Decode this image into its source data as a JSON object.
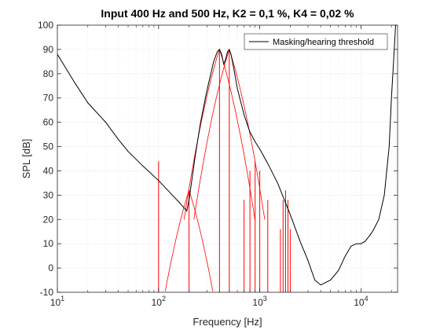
{
  "chart_data": {
    "type": "line",
    "title": "Input 400 Hz and 500 Hz, K2 = 0,1 %, K4 = 0,02 %",
    "xlabel": "Frequency [Hz]",
    "ylabel": "SPL [dB]",
    "xscale": "log",
    "xlim": [
      10,
      23000
    ],
    "ylim": [
      -10,
      100
    ],
    "grid": true,
    "minor_grid": true,
    "legend_position": "top-right",
    "x_ticks": [
      {
        "base": "10",
        "exp": "1",
        "value": 10
      },
      {
        "base": "10",
        "exp": "2",
        "value": 100
      },
      {
        "base": "10",
        "exp": "3",
        "value": 1000
      },
      {
        "base": "10",
        "exp": "4",
        "value": 10000
      }
    ],
    "y_ticks": [
      -10,
      0,
      10,
      20,
      30,
      40,
      50,
      60,
      70,
      80,
      90,
      100
    ],
    "series": [
      {
        "name": "Masking/hearing threshold",
        "color": "#000000",
        "x": [
          10,
          15,
          20,
          30,
          40,
          50,
          70,
          100,
          130,
          160,
          190,
          200,
          230,
          260,
          300,
          350,
          380,
          400,
          420,
          440,
          460,
          480,
          500,
          520,
          560,
          600,
          700,
          800,
          900,
          1000,
          1200,
          1500,
          2000,
          2500,
          3000,
          3500,
          4000,
          5000,
          6000,
          7000,
          8000,
          9000,
          10000,
          11000,
          12000,
          13000,
          15000,
          17000,
          19000,
          20000,
          21000,
          22000
        ],
        "y": [
          88,
          76,
          68,
          60,
          53,
          48,
          42,
          36,
          31,
          27,
          23.5,
          28,
          46,
          60,
          73,
          85,
          89,
          90,
          88,
          84,
          86,
          89,
          90,
          88,
          81,
          74,
          63,
          56,
          52,
          49,
          43,
          35,
          22,
          11,
          3,
          -5,
          -7,
          -5,
          -1,
          5,
          9,
          10,
          10,
          11,
          13,
          15,
          20,
          30,
          50,
          70,
          85,
          100
        ]
      }
    ],
    "masking_curves": {
      "color": "#ff0000",
      "items": [
        {
          "center": 200,
          "peak": 32
        },
        {
          "center": 400,
          "peak": 90
        },
        {
          "center": 500,
          "peak": 90
        }
      ]
    },
    "spectral_lines": {
      "color": "#ff0000",
      "items": [
        {
          "f": 100,
          "spl": 44
        },
        {
          "f": 200,
          "spl": 32
        },
        {
          "f": 400,
          "spl": 90
        },
        {
          "f": 500,
          "spl": 90
        },
        {
          "f": 700,
          "spl": 28
        },
        {
          "f": 800,
          "spl": 40
        },
        {
          "f": 900,
          "spl": 44
        },
        {
          "f": 1000,
          "spl": 40
        },
        {
          "f": 1200,
          "spl": 28
        },
        {
          "f": 1600,
          "spl": 16
        },
        {
          "f": 1700,
          "spl": 28
        },
        {
          "f": 1800,
          "spl": 32
        },
        {
          "f": 1900,
          "spl": 28
        },
        {
          "f": 2000,
          "spl": 16
        }
      ]
    }
  }
}
